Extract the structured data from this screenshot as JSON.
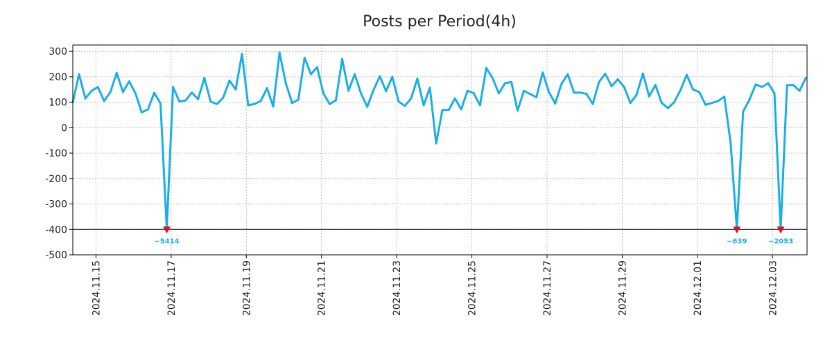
{
  "chart_data": {
    "type": "line",
    "title": "Posts per Period(4h)",
    "xlabel": "",
    "ylabel": "",
    "ylim": [
      -500,
      325
    ],
    "xlim": [
      0,
      117.2
    ],
    "yticks": [
      300,
      200,
      100,
      0,
      -100,
      -200,
      -300,
      -400,
      -500
    ],
    "ytick_labels": [
      "300",
      "200",
      "100",
      "0",
      "-100",
      "-200",
      "-300",
      "-400",
      "-500"
    ],
    "xtick_positions": [
      3.7,
      15.7,
      27.7,
      39.7,
      51.7,
      63.7,
      75.7,
      87.7,
      99.7,
      111.7
    ],
    "xtick_labels": [
      "2024.11.15",
      "2024.11.17",
      "2024.11.19",
      "2024.11.21",
      "2024.11.23",
      "2024.11.25",
      "2024.11.27",
      "2024.11.29",
      "2024.12.01",
      "2024.12.03"
    ],
    "grid": true,
    "clip_floor": -400,
    "colors": {
      "line": "#1aaee8",
      "marker": "#d9141c",
      "label": "#1aaee8",
      "floor_line": "#000000"
    },
    "series": [
      {
        "name": "posts",
        "values": [
          100,
          210,
          115,
          145,
          160,
          105,
          140,
          215,
          140,
          182,
          135,
          60,
          72,
          137,
          95,
          -400,
          160,
          103,
          107,
          138,
          112,
          196,
          102,
          93,
          118,
          185,
          150,
          290,
          88,
          93,
          105,
          155,
          83,
          295,
          175,
          97,
          110,
          275,
          210,
          238,
          135,
          93,
          108,
          270,
          145,
          210,
          135,
          82,
          148,
          202,
          143,
          200,
          103,
          85,
          115,
          193,
          88,
          157,
          -62,
          70,
          70,
          115,
          72,
          145,
          135,
          88,
          235,
          195,
          135,
          175,
          180,
          67,
          145,
          132,
          120,
          217,
          140,
          95,
          172,
          210,
          138,
          138,
          133,
          93,
          180,
          212,
          163,
          190,
          160,
          97,
          130,
          213,
          123,
          168,
          97,
          77,
          100,
          148,
          208,
          150,
          140,
          90,
          97,
          105,
          122,
          -60,
          -400,
          63,
          110,
          170,
          160,
          175,
          135,
          -400,
          167,
          168,
          145,
          195
        ]
      }
    ],
    "annotations": [
      {
        "index": 15,
        "value": -5414,
        "label": "−5414"
      },
      {
        "index": 106,
        "value": -639,
        "label": "−639"
      },
      {
        "index": 113,
        "value": -2053,
        "label": "−2053"
      }
    ]
  }
}
